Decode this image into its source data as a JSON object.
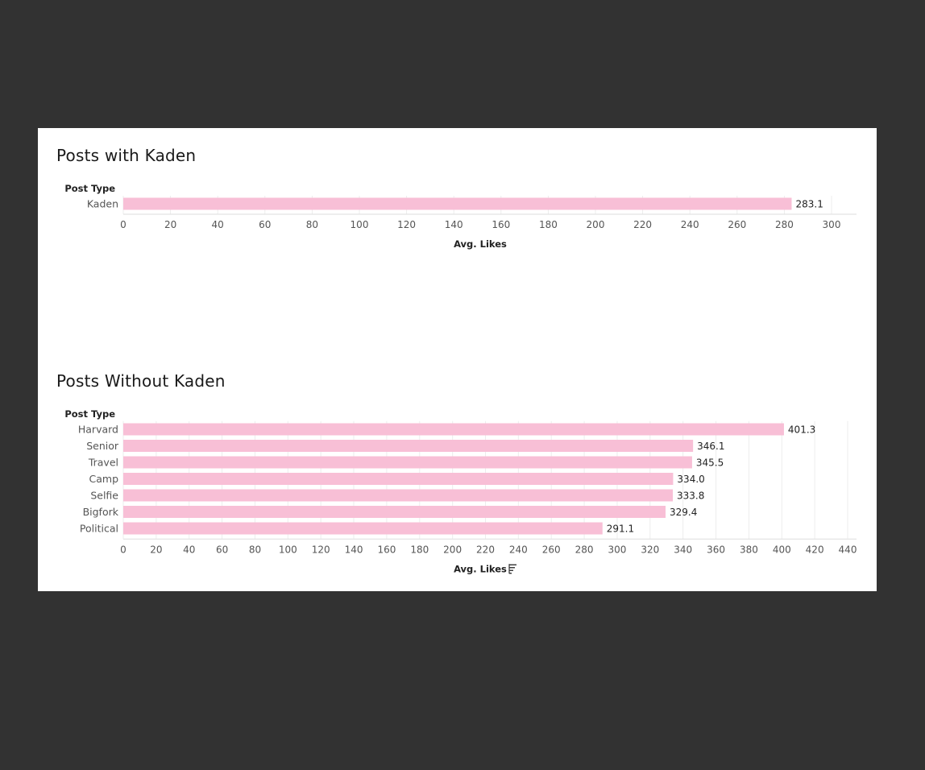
{
  "colors": {
    "bar": "#f8bfd6",
    "grid": "#ededed",
    "background": "#323232",
    "card": "#ffffff"
  },
  "chart_data": [
    {
      "type": "bar",
      "orientation": "horizontal",
      "title": "Posts with Kaden",
      "category_header": "Post Type",
      "categories": [
        "Kaden"
      ],
      "values": [
        283.1
      ],
      "value_labels": [
        "283.1"
      ],
      "xlabel": "Avg. Likes",
      "xlim": [
        0,
        300
      ],
      "xticks": [
        0,
        20,
        40,
        60,
        80,
        100,
        120,
        140,
        160,
        180,
        200,
        220,
        240,
        260,
        280,
        300
      ],
      "grid": true,
      "sort_icon": false
    },
    {
      "type": "bar",
      "orientation": "horizontal",
      "title": "Posts Without Kaden",
      "category_header": "Post Type",
      "categories": [
        "Harvard",
        "Senior",
        "Travel",
        "Camp",
        "Selfie",
        "Bigfork",
        "Political"
      ],
      "values": [
        401.3,
        346.1,
        345.5,
        334.0,
        333.8,
        329.4,
        291.1
      ],
      "value_labels": [
        "401.3",
        "346.1",
        "345.5",
        "334.0",
        "333.8",
        "329.4",
        "291.1"
      ],
      "xlabel": "Avg. Likes",
      "xlim": [
        0,
        440
      ],
      "xticks": [
        0,
        20,
        40,
        60,
        80,
        100,
        120,
        140,
        160,
        180,
        200,
        220,
        240,
        260,
        280,
        300,
        320,
        340,
        360,
        380,
        400,
        420,
        440
      ],
      "grid": true,
      "sort_icon": true
    }
  ]
}
